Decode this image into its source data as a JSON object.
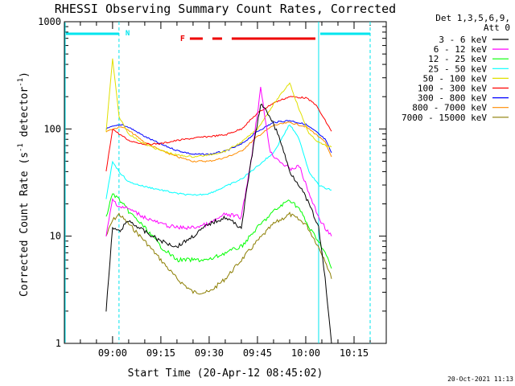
{
  "chart_data": {
    "type": "line",
    "title": "RHESSI Observing Summary Count Rates, Corrected",
    "xlabel": "Start Time (20-Apr-12 08:45:02)",
    "ylabel_main": "Corrected Count Rate (s",
    "ylabel_sup1": "-1",
    "ylabel_mid": " detector",
    "ylabel_sup2": "-1",
    "ylabel_end": ")",
    "y_scale": "log",
    "ylim": [
      1,
      1000
    ],
    "xlim": [
      "08:45:02",
      "10:25:00"
    ],
    "x_ticks": [
      "09:00",
      "09:15",
      "09:30",
      "09:45",
      "10:00",
      "10:15"
    ],
    "y_ticks": [
      "1",
      "10",
      "100",
      "1000"
    ],
    "legend_header": [
      "Det 1,3,5,6,9,",
      "Att 0"
    ],
    "legend_position": "right",
    "timestamp": "20-Oct-2021 11:13",
    "annotations": {
      "night_label": "N",
      "flare_label": "F"
    },
    "series": [
      {
        "name": "3 - 6 keV",
        "color": "#000000",
        "x": [
          "08:58",
          "09:00",
          "09:02",
          "09:05",
          "09:10",
          "09:15",
          "09:20",
          "09:25",
          "09:30",
          "09:35",
          "09:40",
          "09:43",
          "09:46",
          "09:49",
          "09:52",
          "09:55",
          "09:58",
          "10:01",
          "10:04",
          "10:06",
          "10:08"
        ],
        "y": [
          2,
          12,
          11,
          14,
          11,
          9,
          8,
          10,
          13,
          15,
          12,
          50,
          170,
          130,
          80,
          40,
          30,
          20,
          12,
          4,
          1
        ]
      },
      {
        "name": "6 - 12 keV",
        "color": "#ff00ff",
        "x": [
          "08:58",
          "09:00",
          "09:02",
          "09:05",
          "09:10",
          "09:15",
          "09:20",
          "09:25",
          "09:30",
          "09:35",
          "09:40",
          "09:43",
          "09:46",
          "09:49",
          "09:52",
          "09:55",
          "09:58",
          "10:01",
          "10:04",
          "10:06",
          "10:08"
        ],
        "y": [
          10,
          22,
          19,
          18,
          15,
          13,
          12,
          12,
          13,
          16,
          15,
          50,
          240,
          60,
          50,
          42,
          45,
          25,
          15,
          12,
          10
        ]
      },
      {
        "name": "12 - 25 keV",
        "color": "#00ff00",
        "x": [
          "08:58",
          "09:00",
          "09:02",
          "09:05",
          "09:10",
          "09:15",
          "09:20",
          "09:25",
          "09:30",
          "09:35",
          "09:40",
          "09:45",
          "09:50",
          "09:55",
          "09:58",
          "10:01",
          "10:04",
          "10:06",
          "10:08"
        ],
        "y": [
          15,
          25,
          22,
          17,
          12,
          8,
          6,
          6,
          6,
          7,
          8,
          12,
          17,
          22,
          18,
          12,
          9,
          7,
          5
        ]
      },
      {
        "name": "25 - 50 keV",
        "color": "#00ffff",
        "x": [
          "08:58",
          "09:00",
          "09:02",
          "09:05",
          "09:10",
          "09:15",
          "09:20",
          "09:25",
          "09:30",
          "09:35",
          "09:40",
          "09:45",
          "09:50",
          "09:55",
          "09:58",
          "10:01",
          "10:04",
          "10:06",
          "10:08"
        ],
        "y": [
          22,
          50,
          40,
          32,
          29,
          27,
          25,
          24,
          25,
          29,
          34,
          45,
          60,
          110,
          80,
          40,
          30,
          28,
          27
        ]
      },
      {
        "name": "50 - 100 keV",
        "color": "#e0e000",
        "x": [
          "08:58",
          "09:00",
          "09:02",
          "09:05",
          "09:10",
          "09:15",
          "09:20",
          "09:25",
          "09:30",
          "09:35",
          "09:40",
          "09:45",
          "09:50",
          "09:55",
          "09:58",
          "10:01",
          "10:04",
          "10:06",
          "10:08"
        ],
        "y": [
          95,
          450,
          130,
          90,
          72,
          63,
          57,
          55,
          57,
          62,
          75,
          100,
          170,
          270,
          150,
          90,
          75,
          70,
          68
        ]
      },
      {
        "name": "100 - 300 keV",
        "color": "#ff0000",
        "x": [
          "08:58",
          "09:00",
          "09:02",
          "09:05",
          "09:10",
          "09:15",
          "09:20",
          "09:25",
          "09:30",
          "09:35",
          "09:40",
          "09:45",
          "09:50",
          "09:55",
          "10:00",
          "10:03",
          "10:06",
          "10:08"
        ],
        "y": [
          40,
          100,
          90,
          78,
          72,
          73,
          78,
          82,
          85,
          88,
          100,
          140,
          175,
          200,
          195,
          170,
          120,
          95
        ]
      },
      {
        "name": "300 - 800 keV",
        "color": "#0000ff",
        "x": [
          "08:58",
          "09:00",
          "09:03",
          "09:06",
          "09:10",
          "09:15",
          "09:20",
          "09:25",
          "09:30",
          "09:35",
          "09:40",
          "09:45",
          "09:50",
          "09:55",
          "10:00",
          "10:03",
          "10:06",
          "10:08"
        ],
        "y": [
          100,
          105,
          110,
          100,
          85,
          72,
          63,
          58,
          58,
          62,
          72,
          95,
          115,
          120,
          110,
          95,
          80,
          60
        ]
      },
      {
        "name": "800 - 7000 keV",
        "color": "#ff8c00",
        "x": [
          "08:58",
          "09:00",
          "09:03",
          "09:06",
          "09:10",
          "09:15",
          "09:20",
          "09:25",
          "09:30",
          "09:35",
          "09:40",
          "09:45",
          "09:50",
          "09:55",
          "10:00",
          "10:03",
          "10:06",
          "10:08"
        ],
        "y": [
          95,
          100,
          105,
          92,
          75,
          63,
          55,
          50,
          50,
          54,
          62,
          85,
          108,
          115,
          105,
          90,
          75,
          55
        ]
      },
      {
        "name": "7000 - 15000 keV",
        "color": "#8b7d00",
        "x": [
          "08:58",
          "09:00",
          "09:02",
          "09:05",
          "09:10",
          "09:15",
          "09:20",
          "09:25",
          "09:30",
          "09:35",
          "09:40",
          "09:45",
          "09:50",
          "09:55",
          "10:00",
          "10:03",
          "10:06",
          "10:08"
        ],
        "y": [
          10,
          14,
          16,
          13,
          9,
          6,
          4,
          3,
          3,
          4,
          6,
          9,
          13,
          16,
          13,
          9,
          6,
          4
        ]
      }
    ],
    "night_bars": [
      {
        "start": "08:45:02",
        "end": "09:02"
      },
      {
        "start": "10:04",
        "end": "10:20"
      }
    ],
    "flare_bars": [
      {
        "start": "09:24",
        "end": "09:28"
      },
      {
        "start": "09:31",
        "end": "09:34"
      },
      {
        "start": "09:37",
        "end": "10:03"
      }
    ],
    "night_dashed_lines": [
      "09:02",
      "10:20"
    ],
    "night_solid_line": "10:04",
    "colors": {
      "axis": "#000000",
      "night": "#00e5ee",
      "flare": "#ee0000"
    }
  }
}
